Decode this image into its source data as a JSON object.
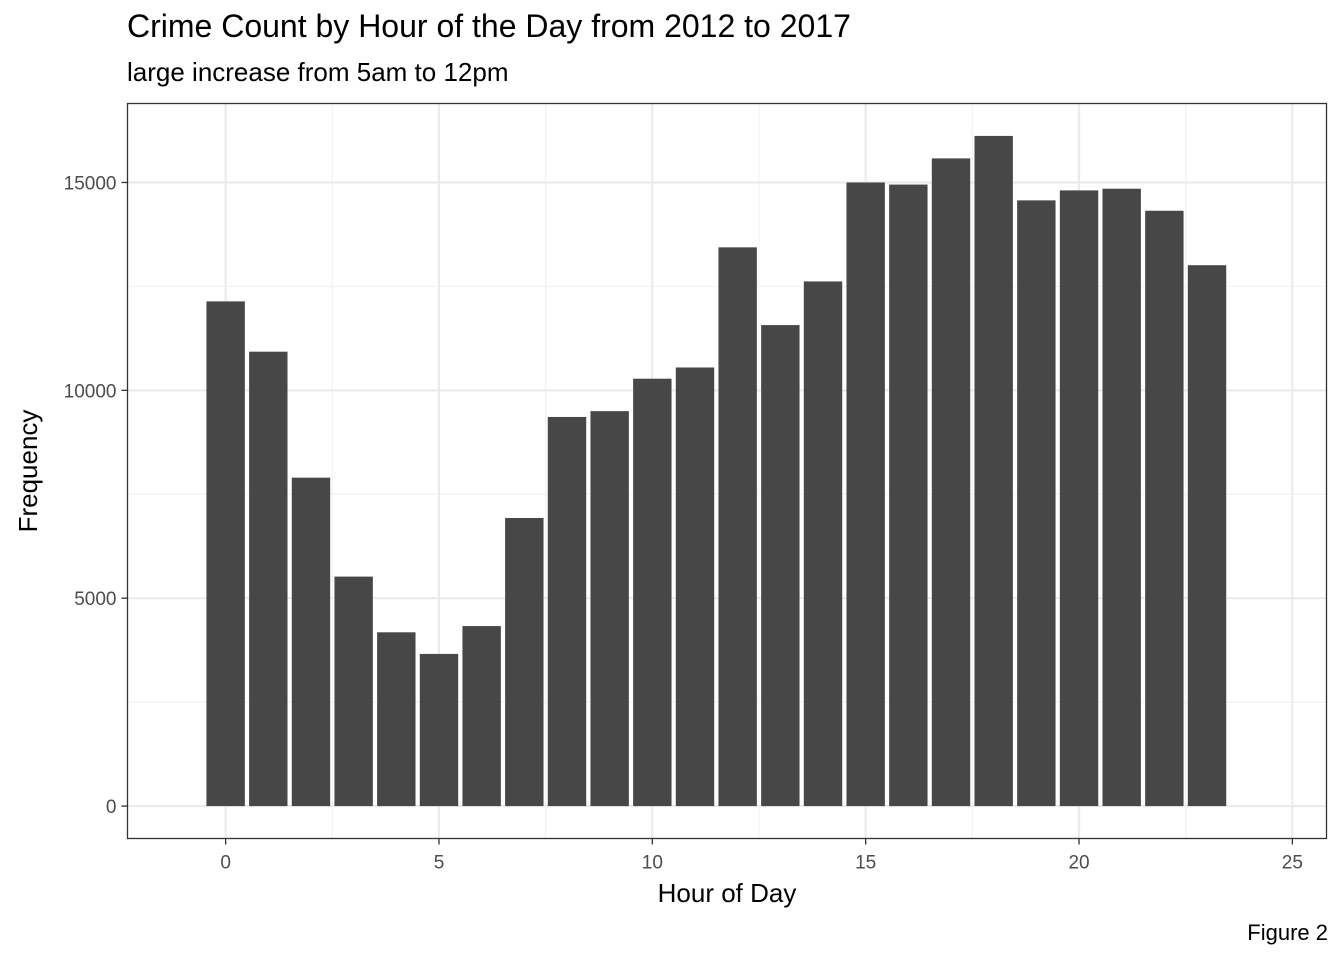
{
  "title": "Crime Count by Hour of the Day from 2012 to 2017",
  "subtitle": "large increase from 5am to 12pm",
  "caption": "Figure 2",
  "colors": {
    "bar": "#474747",
    "panel_border": "#333333",
    "grid_major": "#ebebeb",
    "grid_minor": "#f2f2f2",
    "tick_text": "#4d4d4d",
    "background": "#ffffff"
  },
  "chart_data": {
    "type": "bar",
    "title": "Crime Count by Hour of the Day from 2012 to 2017",
    "subtitle": "large increase from 5am to 12pm",
    "xlabel": "Hour of Day",
    "ylabel": "Frequency",
    "xlim": [
      -2.3,
      25.8
    ],
    "ylim": [
      -780,
      16900
    ],
    "x_ticks": [
      0,
      5,
      10,
      15,
      20,
      25
    ],
    "y_ticks": [
      0,
      5000,
      10000,
      15000
    ],
    "x_tick_labels": [
      "0",
      "5",
      "10",
      "15",
      "20",
      "25"
    ],
    "y_tick_labels": [
      "0",
      "5000",
      "10000",
      "15000"
    ],
    "grid": true,
    "legend": "none",
    "x": [
      0,
      1,
      2,
      3,
      4,
      5,
      6,
      7,
      8,
      9,
      10,
      11,
      12,
      13,
      14,
      15,
      16,
      17,
      18,
      19,
      20,
      21,
      22,
      23
    ],
    "values": [
      12140,
      10930,
      7900,
      5520,
      4180,
      3660,
      4330,
      6930,
      9360,
      9500,
      10280,
      10550,
      13440,
      11570,
      12620,
      15000,
      14950,
      15580,
      16120,
      14570,
      14810,
      14850,
      14320,
      13010
    ]
  }
}
